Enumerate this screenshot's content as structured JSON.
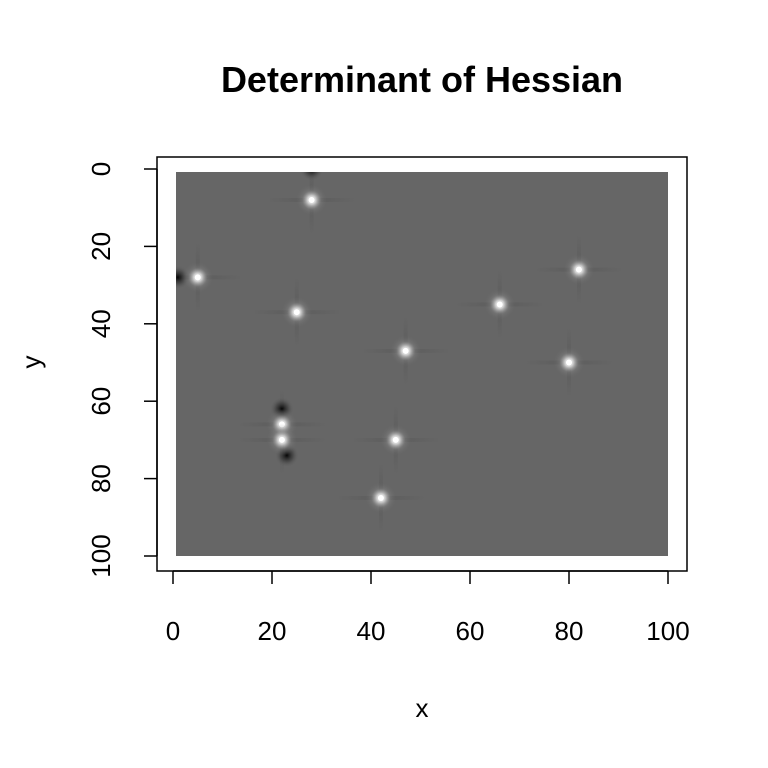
{
  "chart_data": {
    "type": "heatmap",
    "title": "Determinant of Hessian",
    "xlabel": "x",
    "ylabel": "y",
    "xlim": [
      0,
      100
    ],
    "ylim": [
      0,
      100
    ],
    "y_axis_inverted": true,
    "grid": false,
    "colormap": "grayscale",
    "background_value_color": "#666666",
    "x_ticks": [
      0,
      20,
      40,
      60,
      80,
      100
    ],
    "y_ticks": [
      0,
      20,
      40,
      60,
      80,
      100
    ],
    "bright_spots": [
      {
        "x": 28,
        "y": 8
      },
      {
        "x": 5,
        "y": 28
      },
      {
        "x": 25,
        "y": 37
      },
      {
        "x": 47,
        "y": 47
      },
      {
        "x": 66,
        "y": 35
      },
      {
        "x": 82,
        "y": 26
      },
      {
        "x": 80,
        "y": 50
      },
      {
        "x": 22,
        "y": 66
      },
      {
        "x": 22,
        "y": 70
      },
      {
        "x": 45,
        "y": 70
      },
      {
        "x": 42,
        "y": 85
      }
    ],
    "dark_spots": [
      {
        "x": 1,
        "y": 28
      },
      {
        "x": 22,
        "y": 62
      },
      {
        "x": 23,
        "y": 74
      },
      {
        "x": 28,
        "y": 0
      }
    ]
  }
}
